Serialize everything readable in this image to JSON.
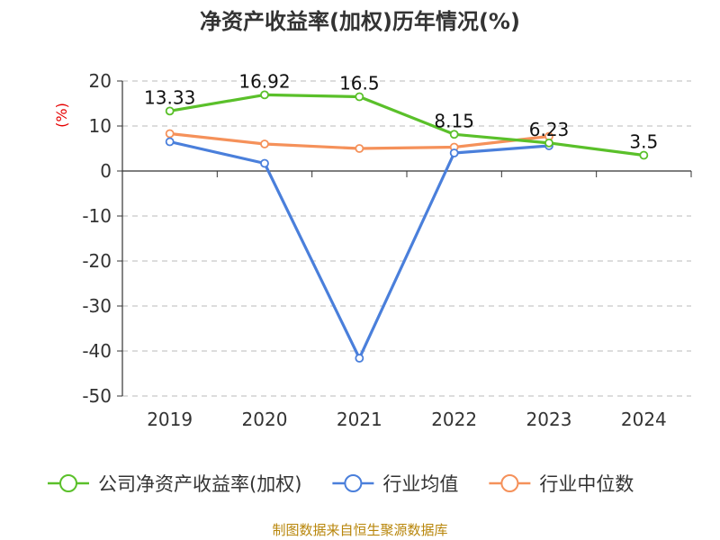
{
  "chart_data": {
    "type": "line",
    "title": "净资产收益率(加权)历年情况(%)",
    "y_unit_label": "(%)",
    "categories": [
      "2019",
      "2020",
      "2021",
      "2022",
      "2023",
      "2024"
    ],
    "ylim": [
      -50,
      20
    ],
    "y_ticks": [
      20,
      10,
      0,
      -10,
      -20,
      -30,
      -40,
      -50
    ],
    "grid": "horizontal-dashed",
    "legend_placement": "bottom",
    "series": [
      {
        "name": "公司净资产收益率(加权)",
        "color": "#5ac02a",
        "values": [
          13.33,
          16.92,
          16.5,
          8.15,
          6.23,
          3.5
        ],
        "labels": [
          "13.33",
          "16.92",
          "16.5",
          "8.15",
          "6.23",
          "3.5"
        ]
      },
      {
        "name": "行业均值",
        "color": "#4a7fdb",
        "values": [
          6.5,
          1.7,
          -41.6,
          4.0,
          5.6,
          null
        ]
      },
      {
        "name": "行业中位数",
        "color": "#f5915a",
        "values": [
          8.3,
          6.0,
          5.0,
          5.3,
          7.7,
          null
        ]
      }
    ]
  },
  "footer": {
    "source": "制图数据来自恒生聚源数据库"
  }
}
